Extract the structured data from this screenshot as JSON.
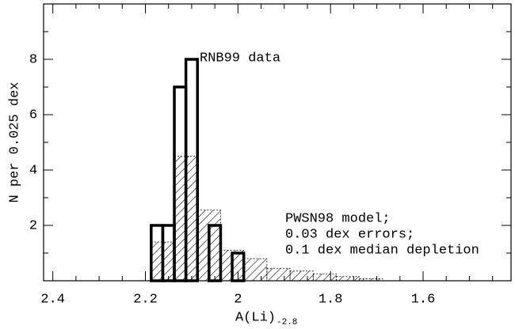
{
  "chart_data": {
    "type": "histogram",
    "x_label": "A(Li)",
    "x_label_sub": "-2.8",
    "y_label": "N per 0.025 dex",
    "xlim": [
      2.42,
      1.41
    ],
    "xticks": [
      2.4,
      2.2,
      2,
      1.8,
      1.6
    ],
    "xticks_minor": [
      2.35,
      2.3,
      2.25,
      2.15,
      2.1,
      2.05,
      1.95,
      1.9,
      1.85,
      1.75,
      1.7,
      1.65,
      1.55,
      1.5,
      1.45
    ],
    "ylim": [
      0,
      10
    ],
    "yticks": [
      2,
      4,
      6,
      8
    ],
    "yticks_minor": [
      1,
      3,
      5,
      7,
      9
    ],
    "series": [
      {
        "name": "RNB99 data",
        "color": "#000000",
        "bins": [
          2.1875,
          2.1625,
          2.1375,
          2.1125,
          2.0875,
          2.0625,
          2.0375,
          2.0125,
          1.9875
        ],
        "values": [
          2,
          2,
          7,
          8,
          0,
          2,
          0,
          1
        ]
      },
      {
        "label_lines": [
          "PWSN98 model;",
          "0.03 dex errors;",
          "0.1 dex median depletion"
        ],
        "color": "#000000",
        "hatched": true,
        "bins": [
          2.1875,
          2.1375,
          2.0875,
          2.0375,
          1.9875,
          1.9375,
          1.8875,
          1.8375,
          1.7875,
          1.7375,
          1.6875
        ],
        "values": [
          1.4,
          4.5,
          2.55,
          1.1,
          0.8,
          0.45,
          0.35,
          0.25,
          0.15,
          0.07
        ]
      }
    ]
  }
}
